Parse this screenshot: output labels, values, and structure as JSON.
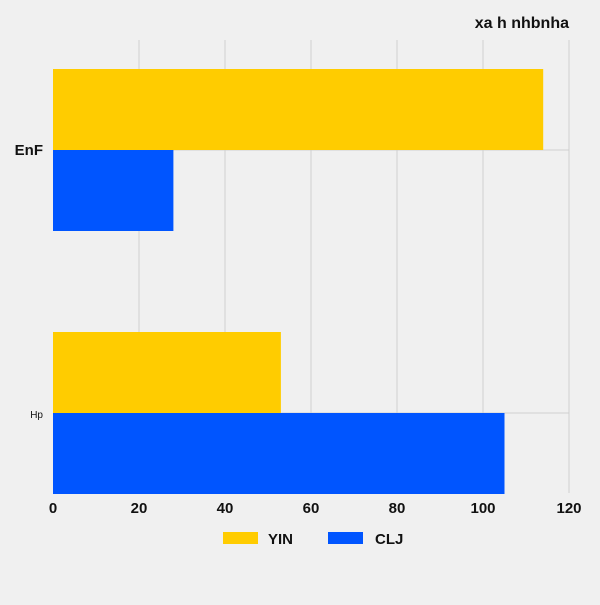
{
  "chart_data": {
    "type": "bar",
    "orientation": "horizontal",
    "title": "xa h  nhbnha",
    "categories": [
      "EnF",
      "Hp"
    ],
    "series": [
      {
        "name": "YIN",
        "color": "#ffcc00",
        "values": [
          114,
          53
        ]
      },
      {
        "name": "CLJ",
        "color": "#0055ff",
        "values": [
          28,
          105
        ]
      }
    ],
    "xlim": [
      0,
      120
    ],
    "x_ticks": [
      0,
      20,
      40,
      60,
      80,
      100,
      120
    ],
    "grid": "vertical",
    "legend_position": "bottom"
  }
}
